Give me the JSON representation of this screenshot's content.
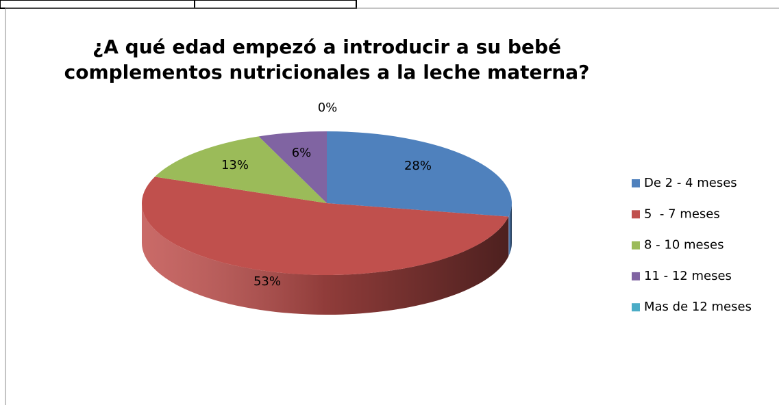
{
  "chart_data": {
    "type": "pie3d",
    "title": "¿A qué edad empezó a introducir a su bebé complementos nutricionales a la leche materna?",
    "categories": [
      "De 2 - 4 meses",
      "5  - 7 meses",
      "8 - 10 meses",
      "11 - 12 meses",
      "Mas de 12 meses"
    ],
    "values": [
      28,
      53,
      13,
      6,
      0
    ],
    "value_labels": [
      "28%",
      "53%",
      "13%",
      "6%",
      "0%"
    ],
    "colors": [
      "#4f81bd",
      "#c0504d",
      "#9bbb59",
      "#8064a2",
      "#4bacc6"
    ],
    "legend": "right"
  }
}
